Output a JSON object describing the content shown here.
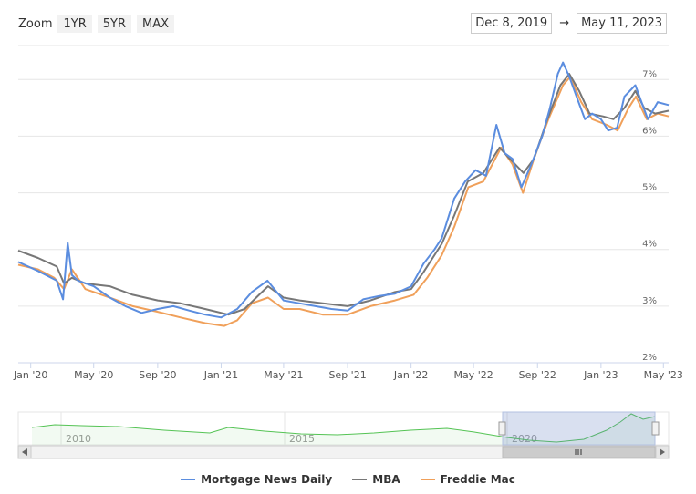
{
  "zoom": {
    "label": "Zoom",
    "buttons": [
      "1YR",
      "5YR",
      "MAX"
    ]
  },
  "range": {
    "from": "Dec 8, 2019",
    "arrow": "→",
    "to": "May 11, 2023"
  },
  "legend": [
    {
      "name": "Mortgage News Daily",
      "color": "#5b8ddf"
    },
    {
      "name": "MBA",
      "color": "#777777"
    },
    {
      "name": "Freddie Mac",
      "color": "#f0a05a"
    }
  ],
  "navigator_labels": [
    "2010",
    "2015",
    "2020"
  ],
  "chart_data": {
    "type": "line",
    "x_ticks": [
      "Jan '20",
      "May '20",
      "Sep '20",
      "Jan '21",
      "May '21",
      "Sep '21",
      "Jan '22",
      "May '22",
      "Sep '22",
      "Jan '23",
      "May '23"
    ],
    "y_ticks": [
      "2%",
      "3%",
      "4%",
      "5%",
      "6%",
      "7%"
    ],
    "ylim": [
      2,
      7.6
    ],
    "xlim": [
      "2019-12-08",
      "2023-05-11"
    ],
    "grid": true,
    "legend_position": "bottom",
    "series": [
      {
        "name": "Mortgage News Daily",
        "color": "#5b8ddf",
        "x": [
          "2019-12-08",
          "2020-01-15",
          "2020-02-20",
          "2020-03-03",
          "2020-03-12",
          "2020-03-20",
          "2020-04-01",
          "2020-05-01",
          "2020-06-01",
          "2020-07-01",
          "2020-08-01",
          "2020-09-01",
          "2020-10-01",
          "2020-11-01",
          "2020-12-01",
          "2021-01-01",
          "2021-02-01",
          "2021-03-01",
          "2021-03-31",
          "2021-05-01",
          "2021-06-01",
          "2021-07-01",
          "2021-08-01",
          "2021-09-01",
          "2021-10-01",
          "2021-11-01",
          "2021-12-01",
          "2022-01-01",
          "2022-01-25",
          "2022-02-15",
          "2022-03-01",
          "2022-03-25",
          "2022-04-15",
          "2022-05-05",
          "2022-05-25",
          "2022-06-14",
          "2022-06-30",
          "2022-07-15",
          "2022-08-01",
          "2022-08-20",
          "2022-09-10",
          "2022-09-25",
          "2022-10-10",
          "2022-10-20",
          "2022-11-01",
          "2022-11-15",
          "2022-12-01",
          "2022-12-15",
          "2023-01-01",
          "2023-01-15",
          "2023-02-01",
          "2023-02-15",
          "2023-03-08",
          "2023-03-20",
          "2023-04-01",
          "2023-04-20",
          "2023-05-11"
        ],
        "values": [
          3.78,
          3.62,
          3.45,
          3.12,
          4.12,
          3.55,
          3.45,
          3.35,
          3.15,
          3.0,
          2.88,
          2.95,
          3.0,
          2.92,
          2.85,
          2.8,
          2.95,
          3.25,
          3.45,
          3.1,
          3.05,
          3.0,
          2.95,
          2.92,
          3.12,
          3.18,
          3.22,
          3.35,
          3.75,
          4.0,
          4.2,
          4.9,
          5.2,
          5.4,
          5.3,
          6.2,
          5.7,
          5.6,
          5.1,
          5.5,
          6.0,
          6.5,
          7.1,
          7.3,
          7.05,
          6.7,
          6.3,
          6.4,
          6.3,
          6.1,
          6.15,
          6.7,
          6.9,
          6.6,
          6.3,
          6.6,
          6.55
        ]
      },
      {
        "name": "MBA",
        "color": "#777777",
        "x": [
          "2019-12-08",
          "2020-01-15",
          "2020-02-20",
          "2020-03-05",
          "2020-03-20",
          "2020-04-15",
          "2020-06-01",
          "2020-07-15",
          "2020-09-01",
          "2020-10-15",
          "2020-12-01",
          "2021-01-15",
          "2021-02-15",
          "2021-03-15",
          "2021-04-01",
          "2021-05-01",
          "2021-06-01",
          "2021-07-15",
          "2021-09-01",
          "2021-10-15",
          "2021-12-01",
          "2022-01-01",
          "2022-01-25",
          "2022-03-01",
          "2022-03-25",
          "2022-04-20",
          "2022-05-20",
          "2022-06-20",
          "2022-07-10",
          "2022-08-05",
          "2022-08-25",
          "2022-09-20",
          "2022-10-15",
          "2022-11-01",
          "2022-11-20",
          "2022-12-10",
          "2023-01-05",
          "2023-01-25",
          "2023-02-15",
          "2023-03-08",
          "2023-03-25",
          "2023-04-15",
          "2023-05-11"
        ],
        "values": [
          3.98,
          3.85,
          3.7,
          3.4,
          3.5,
          3.4,
          3.35,
          3.2,
          3.1,
          3.05,
          2.95,
          2.85,
          2.95,
          3.2,
          3.35,
          3.15,
          3.1,
          3.05,
          3.0,
          3.1,
          3.25,
          3.3,
          3.6,
          4.1,
          4.6,
          5.2,
          5.35,
          5.8,
          5.6,
          5.35,
          5.6,
          6.3,
          6.9,
          7.1,
          6.8,
          6.4,
          6.35,
          6.3,
          6.5,
          6.8,
          6.5,
          6.4,
          6.45
        ]
      },
      {
        "name": "Freddie Mac",
        "color": "#f0a05a",
        "x": [
          "2019-12-08",
          "2020-01-15",
          "2020-02-15",
          "2020-03-05",
          "2020-03-20",
          "2020-04-15",
          "2020-06-01",
          "2020-07-15",
          "2020-09-01",
          "2020-10-15",
          "2020-12-01",
          "2021-01-07",
          "2021-02-01",
          "2021-03-01",
          "2021-04-01",
          "2021-05-01",
          "2021-06-01",
          "2021-07-15",
          "2021-09-01",
          "2021-10-15",
          "2021-12-01",
          "2022-01-06",
          "2022-02-01",
          "2022-03-01",
          "2022-03-25",
          "2022-04-21",
          "2022-05-20",
          "2022-06-23",
          "2022-07-15",
          "2022-08-04",
          "2022-08-25",
          "2022-09-22",
          "2022-10-20",
          "2022-11-03",
          "2022-11-24",
          "2022-12-15",
          "2023-01-12",
          "2023-02-02",
          "2023-02-23",
          "2023-03-09",
          "2023-03-30",
          "2023-04-20",
          "2023-05-11"
        ],
        "values": [
          3.73,
          3.65,
          3.5,
          3.3,
          3.65,
          3.3,
          3.15,
          3.0,
          2.9,
          2.8,
          2.7,
          2.65,
          2.75,
          3.05,
          3.15,
          2.95,
          2.95,
          2.85,
          2.85,
          3.0,
          3.1,
          3.2,
          3.5,
          3.9,
          4.4,
          5.1,
          5.2,
          5.8,
          5.5,
          5.0,
          5.6,
          6.3,
          6.9,
          7.05,
          6.6,
          6.3,
          6.2,
          6.1,
          6.5,
          6.7,
          6.3,
          6.4,
          6.35
        ]
      }
    ]
  }
}
